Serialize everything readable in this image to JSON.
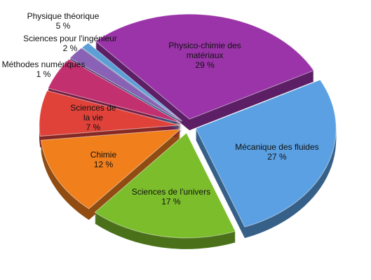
{
  "chart_data": {
    "type": "pie",
    "categories": [
      "Physico-chimie des matériaux",
      "Mécanique des fluides",
      "Sciences de l'univers",
      "Chimie",
      "Sciences de la vie",
      "Physique théorique",
      "Sciences pour l'ingénieur",
      "Méthodes numériques"
    ],
    "values": [
      29,
      27,
      17,
      12,
      7,
      5,
      2,
      1
    ],
    "value_labels": [
      "29 %",
      "27 %",
      "17 %",
      "12 %",
      "7 %",
      "5 %",
      "2 %",
      "1 %"
    ],
    "colors": [
      "#9a34a8",
      "#5aa0e2",
      "#7cbd2c",
      "#f07f1c",
      "#e0423a",
      "#c3306f",
      "#8a62b5",
      "#5c9fd6"
    ]
  }
}
